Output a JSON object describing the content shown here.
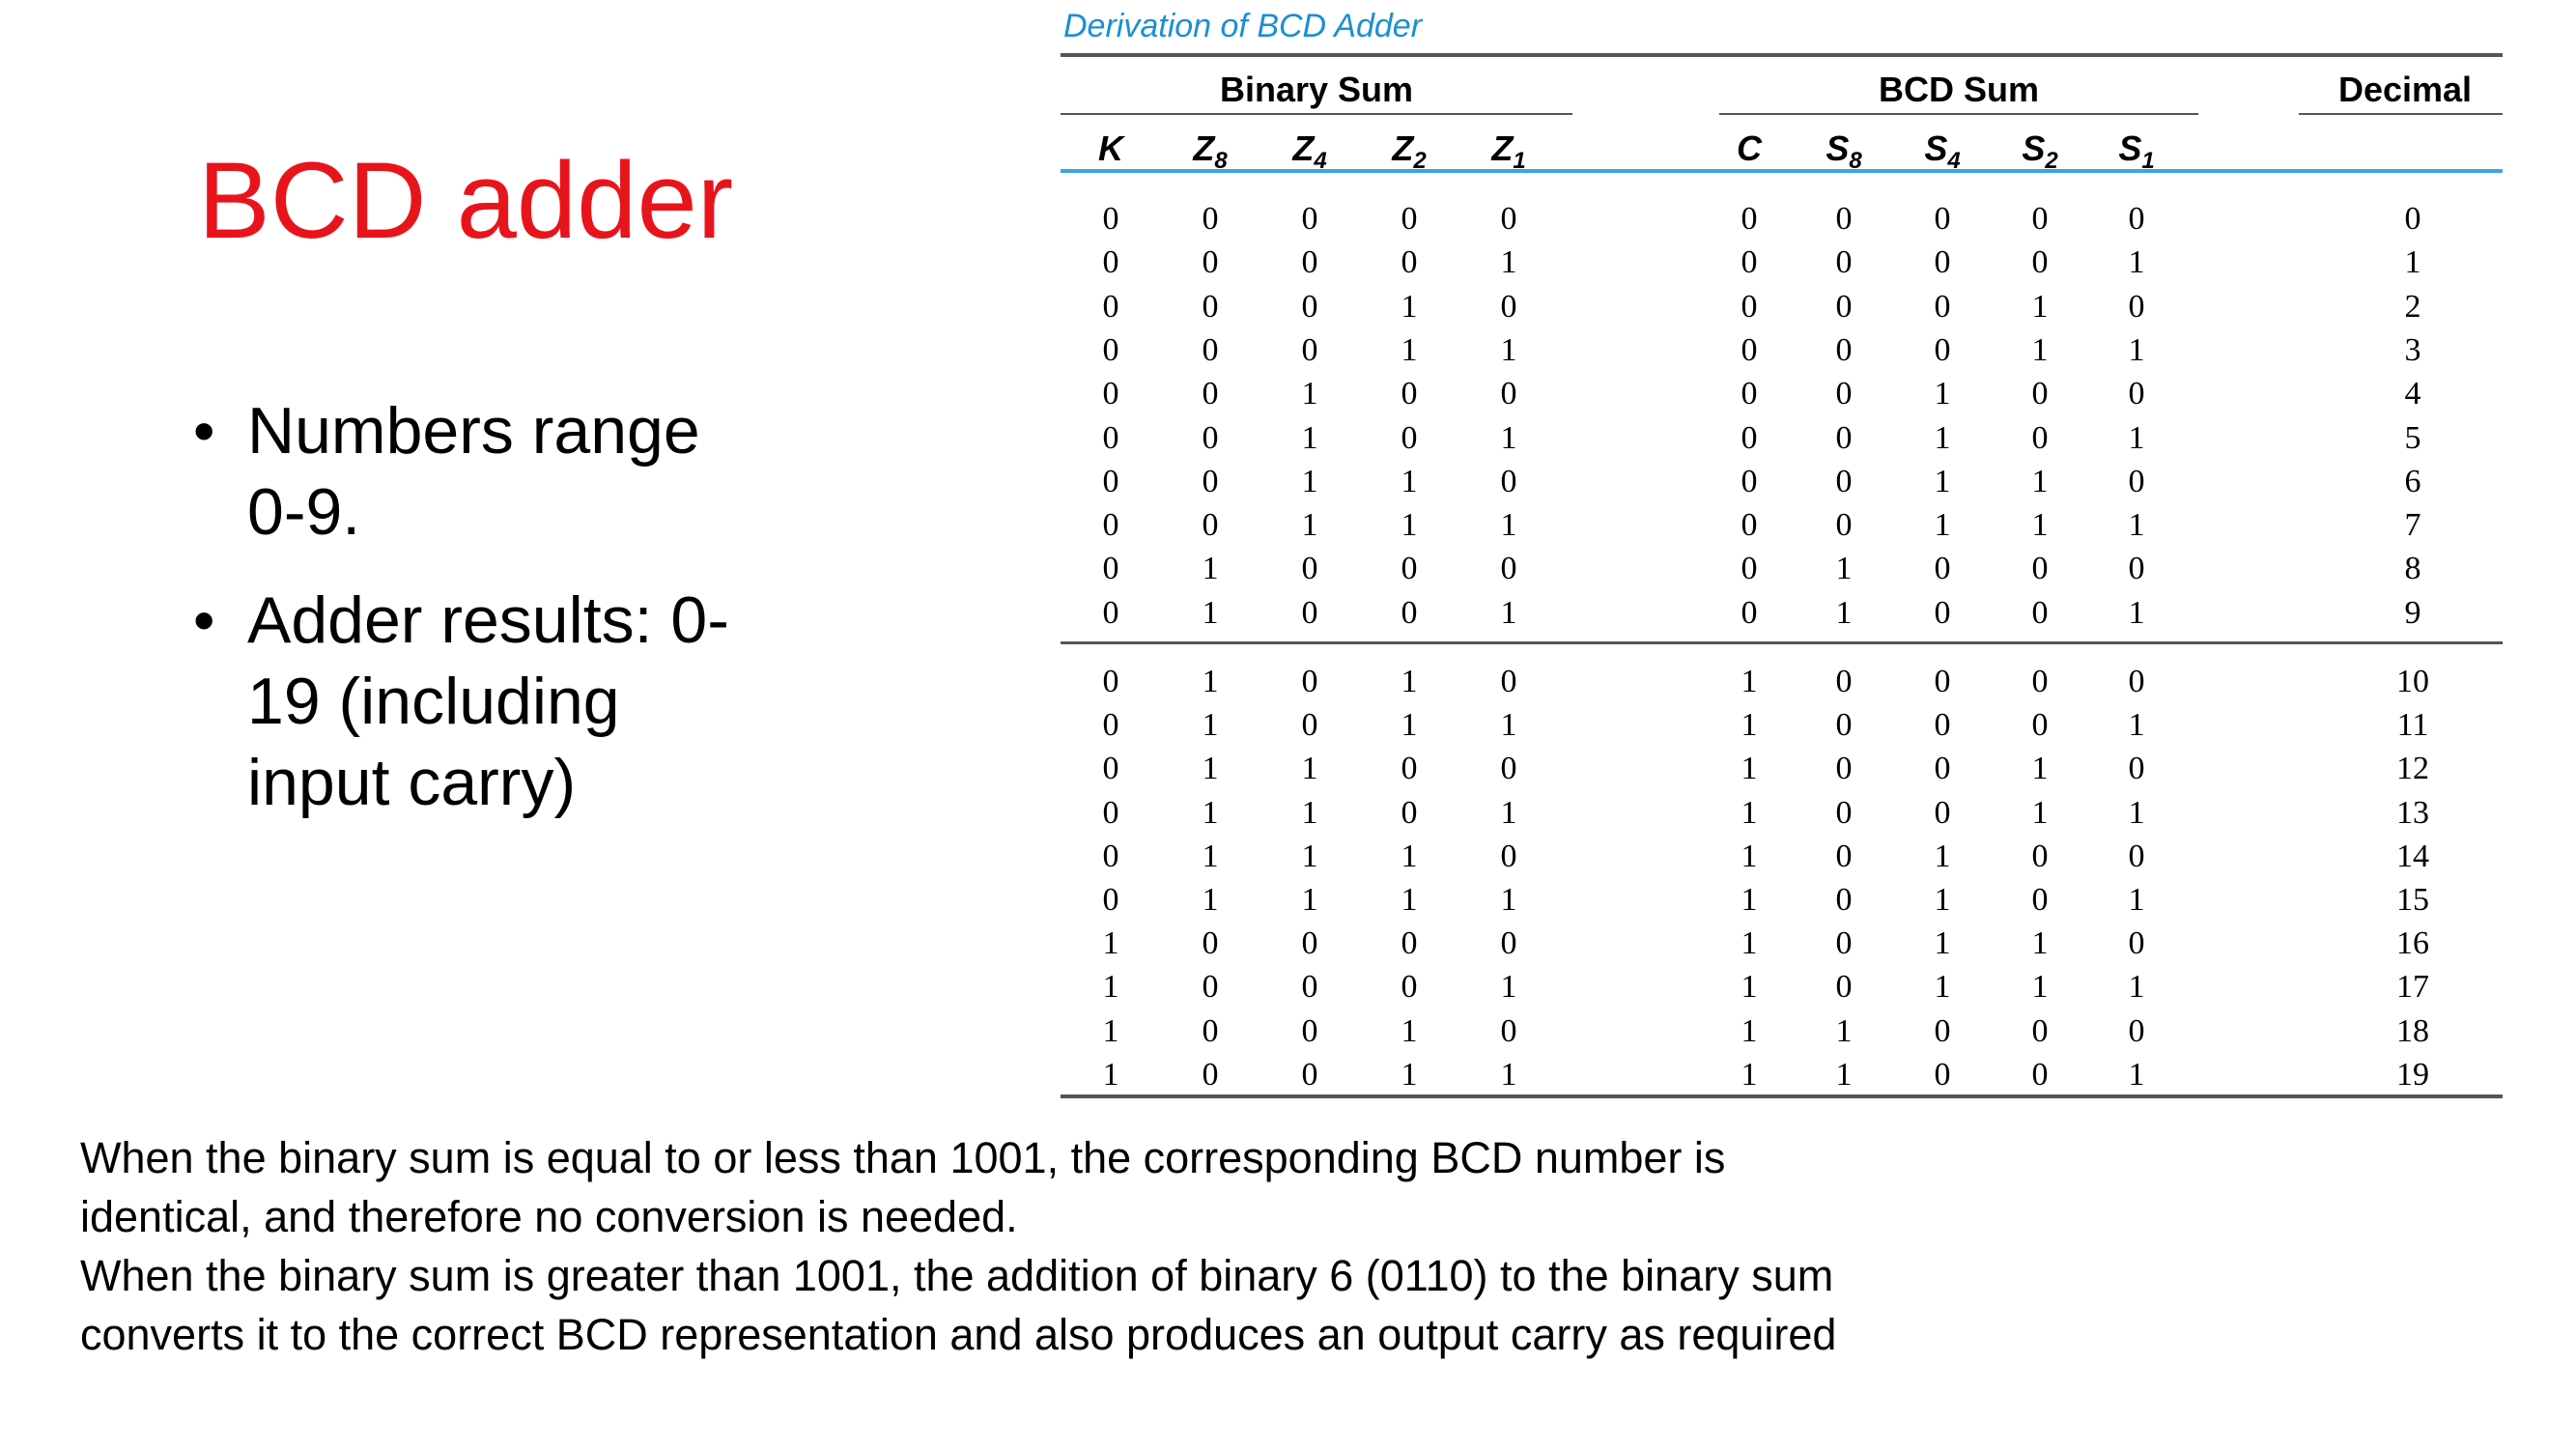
{
  "slide": {
    "title": "BCD adder",
    "bullets": [
      "Numbers range 0-9.",
      "Adder results: 0-19 (including input carry)"
    ],
    "notes": [
      "When the binary sum is equal to or less than 1001, the corresponding BCD number is identical, and therefore no conversion is needed.",
      "When the binary sum is greater than 1001, the addition of binary 6 (0110) to the binary sum converts it to the correct BCD representation and also produces an output carry as required"
    ]
  },
  "table": {
    "caption": "Derivation of BCD Adder",
    "groups": {
      "binary_sum": "Binary Sum",
      "bcd_sum": "BCD Sum",
      "decimal": "Decimal"
    },
    "columns": [
      {
        "letter": "K",
        "sub": ""
      },
      {
        "letter": "Z",
        "sub": "8"
      },
      {
        "letter": "Z",
        "sub": "4"
      },
      {
        "letter": "Z",
        "sub": "2"
      },
      {
        "letter": "Z",
        "sub": "1"
      },
      {
        "letter": "C",
        "sub": ""
      },
      {
        "letter": "S",
        "sub": "8"
      },
      {
        "letter": "S",
        "sub": "4"
      },
      {
        "letter": "S",
        "sub": "2"
      },
      {
        "letter": "S",
        "sub": "1"
      }
    ],
    "rows": [
      [
        "0",
        "0",
        "0",
        "0",
        "0",
        "0",
        "0",
        "0",
        "0",
        "0",
        "0"
      ],
      [
        "0",
        "0",
        "0",
        "0",
        "1",
        "0",
        "0",
        "0",
        "0",
        "1",
        "1"
      ],
      [
        "0",
        "0",
        "0",
        "1",
        "0",
        "0",
        "0",
        "0",
        "1",
        "0",
        "2"
      ],
      [
        "0",
        "0",
        "0",
        "1",
        "1",
        "0",
        "0",
        "0",
        "1",
        "1",
        "3"
      ],
      [
        "0",
        "0",
        "1",
        "0",
        "0",
        "0",
        "0",
        "1",
        "0",
        "0",
        "4"
      ],
      [
        "0",
        "0",
        "1",
        "0",
        "1",
        "0",
        "0",
        "1",
        "0",
        "1",
        "5"
      ],
      [
        "0",
        "0",
        "1",
        "1",
        "0",
        "0",
        "0",
        "1",
        "1",
        "0",
        "6"
      ],
      [
        "0",
        "0",
        "1",
        "1",
        "1",
        "0",
        "0",
        "1",
        "1",
        "1",
        "7"
      ],
      [
        "0",
        "1",
        "0",
        "0",
        "0",
        "0",
        "1",
        "0",
        "0",
        "0",
        "8"
      ],
      [
        "0",
        "1",
        "0",
        "0",
        "1",
        "0",
        "1",
        "0",
        "0",
        "1",
        "9"
      ],
      [
        "0",
        "1",
        "0",
        "1",
        "0",
        "1",
        "0",
        "0",
        "0",
        "0",
        "10"
      ],
      [
        "0",
        "1",
        "0",
        "1",
        "1",
        "1",
        "0",
        "0",
        "0",
        "1",
        "11"
      ],
      [
        "0",
        "1",
        "1",
        "0",
        "0",
        "1",
        "0",
        "0",
        "1",
        "0",
        "12"
      ],
      [
        "0",
        "1",
        "1",
        "0",
        "1",
        "1",
        "0",
        "0",
        "1",
        "1",
        "13"
      ],
      [
        "0",
        "1",
        "1",
        "1",
        "0",
        "1",
        "0",
        "1",
        "0",
        "0",
        "14"
      ],
      [
        "0",
        "1",
        "1",
        "1",
        "1",
        "1",
        "0",
        "1",
        "0",
        "1",
        "15"
      ],
      [
        "1",
        "0",
        "0",
        "0",
        "0",
        "1",
        "0",
        "1",
        "1",
        "0",
        "16"
      ],
      [
        "1",
        "0",
        "0",
        "0",
        "1",
        "1",
        "0",
        "1",
        "1",
        "1",
        "17"
      ],
      [
        "1",
        "0",
        "0",
        "1",
        "0",
        "1",
        "1",
        "0",
        "0",
        "0",
        "18"
      ],
      [
        "1",
        "0",
        "0",
        "1",
        "1",
        "1",
        "1",
        "0",
        "0",
        "1",
        "19"
      ]
    ]
  }
}
